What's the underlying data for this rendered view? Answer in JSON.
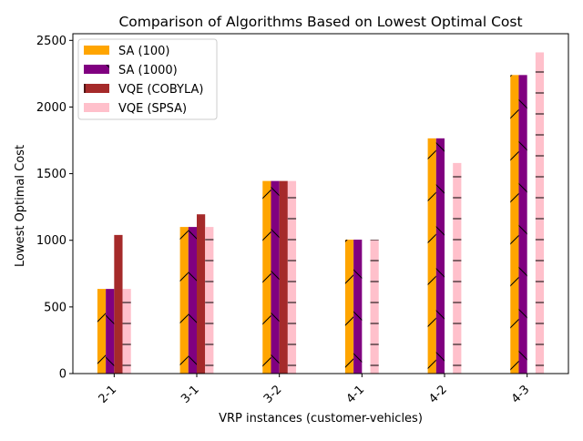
{
  "chart_data": {
    "type": "bar",
    "title": "Comparison of Algorithms Based on Lowest Optimal Cost",
    "xlabel": "VRP instances (customer-vehicles)",
    "ylabel": "Lowest Optimal Cost",
    "categories": [
      "2-1",
      "3-1",
      "3-2",
      "4-1",
      "4-2",
      "4-3"
    ],
    "ylim": [
      0,
      2550
    ],
    "yticks": [
      0,
      500,
      1000,
      1500,
      2000,
      2500
    ],
    "grid": false,
    "legend_position": "top-left",
    "series": [
      {
        "name": "SA (100)",
        "color": "#ffa500",
        "hatch": "forward-slash",
        "values": [
          635,
          1100,
          1445,
          1005,
          1765,
          2240
        ]
      },
      {
        "name": "SA (1000)",
        "color": "#800080",
        "hatch": "back-slash",
        "values": [
          635,
          1100,
          1445,
          1005,
          1765,
          2240
        ]
      },
      {
        "name": "VQE (COBYLA)",
        "color": "#a52a2a",
        "hatch": "vertical",
        "values": [
          1040,
          1195,
          1445,
          0,
          0,
          0
        ]
      },
      {
        "name": "VQE (SPSA)",
        "color": "#ffc0cb",
        "hatch": "horizontal",
        "values": [
          635,
          1100,
          1445,
          1005,
          1580,
          2410
        ]
      }
    ]
  }
}
